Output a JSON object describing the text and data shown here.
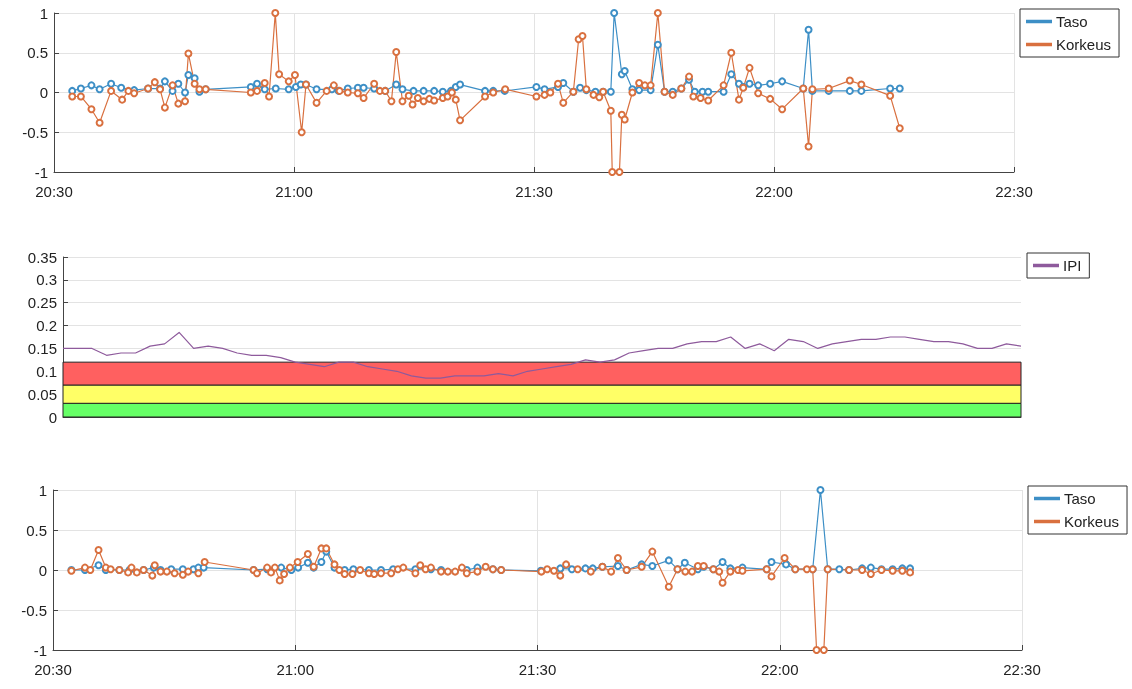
{
  "chart_data": [
    {
      "type": "line",
      "xlim": [
        20.5,
        22.5
      ],
      "xticks": [
        {
          "value": 20.5,
          "label": "20:30"
        },
        {
          "value": 21,
          "label": "21:00"
        },
        {
          "value": 21.5,
          "label": "21:30"
        },
        {
          "value": 22,
          "label": "22:00"
        },
        {
          "value": 22.5,
          "label": "22:30"
        }
      ],
      "ylim": [
        -1,
        1
      ],
      "yticks": [
        -1,
        -0.5,
        0,
        0.5,
        1
      ],
      "grid": true,
      "legend": "top right",
      "marker": "circle",
      "series": [
        {
          "name": "Taso",
          "color": "#3d8fc6",
          "x": [
            20.538,
            20.556,
            20.578,
            20.595,
            20.619,
            20.64,
            20.667,
            20.696,
            20.721,
            20.731,
            20.747,
            20.759,
            20.773,
            20.78,
            20.793,
            20.803,
            20.816,
            20.91,
            20.923,
            20.939,
            20.962,
            20.989,
            21.004,
            21.014,
            21.025,
            21.047,
            21.079,
            21.093,
            21.112,
            21.133,
            21.145,
            21.167,
            21.19,
            21.213,
            21.226,
            21.249,
            21.27,
            21.292,
            21.31,
            21.327,
            21.337,
            21.346,
            21.398,
            21.415,
            21.439,
            21.505,
            21.522,
            21.55,
            21.561,
            21.582,
            21.596,
            21.609,
            21.628,
            21.644,
            21.66,
            21.667,
            21.683,
            21.689,
            21.705,
            21.719,
            21.743,
            21.758,
            21.772,
            21.789,
            21.807,
            21.823,
            21.835,
            21.851,
            21.863,
            21.895,
            21.911,
            21.927,
            21.936,
            21.949,
            21.967,
            21.992,
            22.017,
            22.061,
            22.072,
            22.08,
            22.114,
            22.158,
            22.182,
            22.242,
            22.262
          ],
          "values": [
            0.02,
            0.05,
            0.09,
            0.04,
            0.11,
            0.06,
            0.03,
            0.05,
            0.05,
            0.14,
            0.02,
            0.11,
            0,
            0.22,
            0.18,
            0.01,
            0.04,
            0.07,
            0.11,
            0.04,
            0.05,
            0.04,
            0.07,
            0.1,
            0.1,
            0.04,
            0.04,
            0.02,
            0.05,
            0.06,
            0.06,
            0.05,
            0.02,
            0.1,
            0.04,
            0.02,
            0.02,
            0.02,
            0.01,
            0.02,
            0.07,
            0.1,
            0.02,
            0.02,
            0.02,
            0.07,
            0.04,
            0.07,
            0.12,
            0.01,
            0.06,
            0.03,
            0.01,
            0.01,
            0.01,
            1,
            0.23,
            0.27,
            0.04,
            0.03,
            0.03,
            0.6,
            0.01,
            0.01,
            0.05,
            0.16,
            0.01,
            0.01,
            0.01,
            0.01,
            0.23,
            0.11,
            0.07,
            0.11,
            0.09,
            0.11,
            0.14,
            0.05,
            0.79,
            0.02,
            0.02,
            0.02,
            0.02,
            0.05,
            0.05
          ]
        },
        {
          "name": "Korkeus",
          "color": "#d9703f",
          "x": [
            20.538,
            20.556,
            20.578,
            20.595,
            20.619,
            20.642,
            20.655,
            20.667,
            20.696,
            20.71,
            20.721,
            20.731,
            20.747,
            20.759,
            20.773,
            20.78,
            20.793,
            20.803,
            20.816,
            20.91,
            20.923,
            20.939,
            20.948,
            20.961,
            20.969,
            20.989,
            21.002,
            21.016,
            21.025,
            21.047,
            21.068,
            21.083,
            21.095,
            21.112,
            21.133,
            21.145,
            21.167,
            21.179,
            21.19,
            21.203,
            21.213,
            21.226,
            21.239,
            21.247,
            21.258,
            21.27,
            21.282,
            21.292,
            21.31,
            21.32,
            21.329,
            21.337,
            21.346,
            21.398,
            21.415,
            21.44,
            21.505,
            21.522,
            21.534,
            21.55,
            21.561,
            21.582,
            21.593,
            21.601,
            21.609,
            21.624,
            21.636,
            21.644,
            21.66,
            21.663,
            21.678,
            21.683,
            21.689,
            21.705,
            21.719,
            21.731,
            21.743,
            21.758,
            21.772,
            21.789,
            21.807,
            21.823,
            21.832,
            21.847,
            21.863,
            21.895,
            21.911,
            21.927,
            21.936,
            21.949,
            21.967,
            21.992,
            22.017,
            22.061,
            22.072,
            22.08,
            22.114,
            22.158,
            22.182,
            22.242,
            22.262
          ],
          "values": [
            -0.05,
            -0.05,
            -0.21,
            -0.38,
            0.02,
            -0.09,
            0.02,
            -0.01,
            0.05,
            0.13,
            0.04,
            -0.19,
            0.09,
            -0.14,
            -0.11,
            0.49,
            0.11,
            0.04,
            0.04,
            0,
            0.02,
            0.12,
            -0.05,
            1,
            0.23,
            0.14,
            0.22,
            -0.5,
            0.1,
            -0.13,
            0.02,
            0.09,
            0.02,
            0,
            -0.01,
            -0.07,
            0.11,
            0.02,
            0.02,
            -0.11,
            0.51,
            -0.11,
            -0.04,
            -0.15,
            -0.07,
            -0.11,
            -0.08,
            -0.1,
            -0.07,
            -0.05,
            0,
            -0.09,
            -0.35,
            -0.05,
            0,
            0.04,
            -0.05,
            -0.03,
            0,
            0.11,
            -0.13,
            0.01,
            0.67,
            0.71,
            0.04,
            -0.03,
            -0.06,
            0.01,
            -0.23,
            -1,
            -1,
            -0.28,
            -0.34,
            0,
            0.12,
            0.09,
            0.09,
            1,
            0.01,
            -0.03,
            0.05,
            0.2,
            -0.05,
            -0.07,
            -0.1,
            0.09,
            0.5,
            -0.09,
            0.06,
            0.31,
            -0.01,
            -0.08,
            -0.21,
            0.05,
            -0.68,
            0.04,
            0.05,
            0.15,
            0.1,
            -0.04,
            -0.45
          ]
        }
      ]
    },
    {
      "type": "line",
      "categories": [
        null,
        null,
        null,
        null,
        null,
        null,
        null,
        null,
        null,
        null,
        null,
        null,
        null,
        null,
        null,
        null,
        null,
        null,
        null,
        null,
        null,
        null,
        null,
        null,
        null,
        null,
        null,
        null,
        null,
        null,
        null,
        null,
        null,
        null,
        null,
        null,
        null,
        null,
        null,
        null,
        null,
        null,
        null,
        null,
        null,
        null,
        null,
        null,
        null,
        null,
        null,
        null,
        null,
        null,
        null,
        null,
        null,
        null,
        null,
        null,
        null,
        null,
        null,
        null,
        null,
        null,
        null
      ],
      "ylim": [
        0,
        0.35
      ],
      "yticks": [
        0,
        0.05,
        0.1,
        0.15,
        0.2,
        0.25,
        0.3,
        0.35
      ],
      "grid": "y",
      "legend": "top right",
      "marker": "none",
      "tick_labels": "y",
      "series": [
        {
          "name": "IPI",
          "color": "#8e5a9c",
          "values": [
            0.15,
            0.15,
            0.15,
            0.135,
            0.14,
            0.14,
            0.155,
            0.16,
            0.185,
            0.15,
            0.155,
            0.15,
            0.14,
            0.135,
            0.135,
            0.13,
            0.12,
            0.115,
            0.11,
            0.12,
            0.12,
            0.11,
            0.105,
            0.1,
            0.09,
            0.085,
            0.085,
            0.09,
            0.09,
            0.09,
            0.095,
            0.09,
            0.1,
            0.105,
            0.11,
            0.115,
            0.125,
            0.12,
            0.125,
            0.14,
            0.145,
            0.15,
            0.15,
            0.16,
            0.165,
            0.165,
            0.175,
            0.15,
            0.16,
            0.145,
            0.17,
            0.165,
            0.15,
            0.16,
            0.165,
            0.17,
            0.17,
            0.175,
            0.175,
            0.17,
            0.165,
            0.165,
            0.16,
            0.15,
            0.15,
            0.16,
            0.155
          ]
        }
      ],
      "bands": [
        {
          "axis": "y",
          "from": 0,
          "to": 0.03,
          "color": "#66ff66"
        },
        {
          "axis": "y",
          "from": 0.03,
          "to": 0.07,
          "color": "#ffff66"
        },
        {
          "axis": "y",
          "from": 0.07,
          "to": 0.12,
          "color": "#ff6060"
        }
      ]
    },
    {
      "type": "line",
      "xlim": [
        20.5,
        22.5
      ],
      "xticks": [
        {
          "value": 20.5,
          "label": "20:30"
        },
        {
          "value": 21,
          "label": "21:00"
        },
        {
          "value": 21.5,
          "label": "21:30"
        },
        {
          "value": 22,
          "label": "22:00"
        },
        {
          "value": 22.5,
          "label": "22:30"
        }
      ],
      "ylim": [
        -1,
        1
      ],
      "yticks": [
        -1,
        -0.5,
        0,
        0.5,
        1
      ],
      "grid": true,
      "legend": "top right",
      "marker": "circle",
      "series": [
        {
          "name": "Taso",
          "color": "#3d8fc6",
          "x": [
            20.538,
            20.566,
            20.594,
            20.609,
            20.637,
            20.658,
            20.687,
            20.708,
            20.722,
            20.744,
            20.768,
            20.79,
            20.8,
            20.811,
            20.914,
            20.942,
            20.971,
            20.992,
            21.006,
            21.026,
            21.038,
            21.054,
            21.064,
            21.081,
            21.102,
            21.12,
            21.152,
            21.177,
            21.202,
            21.248,
            21.28,
            21.301,
            21.354,
            21.376,
            21.408,
            21.425,
            21.507,
            21.547,
            21.571,
            21.599,
            21.614,
            21.634,
            21.666,
            21.684,
            21.715,
            21.737,
            21.771,
            21.789,
            21.804,
            21.831,
            21.843,
            21.863,
            21.882,
            21.898,
            21.923,
            21.973,
            21.983,
            22.013,
            22.032,
            22.068,
            22.084,
            22.099,
            22.123,
            22.143,
            22.17,
            22.188,
            22.21,
            22.233,
            22.253,
            22.269
          ],
          "values": [
            0,
            0,
            0.06,
            0,
            0,
            0,
            0,
            0.03,
            0,
            0.01,
            0.01,
            0.01,
            0.03,
            0.03,
            0,
            0.01,
            0.03,
            0,
            0.03,
            0.09,
            0.03,
            0.1,
            0.23,
            0.03,
            0,
            0.01,
            0,
            0,
            0.01,
            0.01,
            0.01,
            0,
            0,
            0.03,
            0.01,
            0,
            -0.01,
            0.02,
            0.01,
            0.02,
            0.02,
            0.04,
            0.05,
            0,
            0.07,
            0.05,
            0.12,
            0.01,
            0.09,
            0.01,
            0.04,
            0.01,
            0.1,
            0.02,
            0.03,
            0.01,
            0.1,
            0.07,
            0.01,
            0.01,
            1,
            0.01,
            0.01,
            0,
            0.02,
            0.03,
            0.01,
            0.01,
            0.02,
            0.02
          ]
        },
        {
          "name": "Korkeus",
          "color": "#d9703f",
          "x": [
            20.538,
            20.566,
            20.577,
            20.594,
            20.609,
            20.619,
            20.637,
            20.655,
            20.662,
            20.673,
            20.687,
            20.705,
            20.71,
            20.722,
            20.735,
            20.751,
            20.768,
            20.779,
            20.8,
            20.813,
            20.914,
            20.921,
            20.942,
            20.95,
            20.958,
            20.968,
            20.977,
            20.989,
            21.005,
            21.026,
            21.038,
            21.054,
            21.064,
            21.081,
            21.091,
            21.102,
            21.118,
            21.134,
            21.152,
            21.163,
            21.177,
            21.198,
            21.212,
            21.223,
            21.248,
            21.258,
            21.269,
            21.28,
            21.301,
            21.315,
            21.33,
            21.344,
            21.354,
            21.376,
            21.393,
            21.408,
            21.425,
            21.508,
            21.52,
            21.534,
            21.547,
            21.559,
            21.583,
            21.61,
            21.634,
            21.652,
            21.666,
            21.684,
            21.715,
            21.737,
            21.771,
            21.789,
            21.805,
            21.819,
            21.831,
            21.843,
            21.863,
            21.875,
            21.882,
            21.898,
            21.914,
            21.923,
            21.973,
            21.983,
            22.01,
            22.032,
            22.056,
            22.068,
            22.076,
            22.091,
            22.099,
            22.143,
            22.17,
            22.188,
            22.21,
            22.233,
            22.253,
            22.269
          ],
          "values": [
            -0.01,
            0.03,
            0,
            0.25,
            0.03,
            0.01,
            0,
            -0.03,
            0.03,
            -0.03,
            0,
            -0.07,
            0.06,
            -0.02,
            -0.02,
            -0.04,
            -0.06,
            -0.02,
            -0.04,
            0.1,
            0,
            -0.04,
            0.03,
            -0.03,
            0.03,
            -0.13,
            -0.05,
            0.03,
            0.1,
            0.2,
            0.04,
            0.27,
            0.27,
            0.07,
            0,
            -0.05,
            -0.05,
            0,
            -0.04,
            -0.05,
            -0.04,
            -0.04,
            0.01,
            0.03,
            -0.04,
            0.06,
            0.01,
            0.03,
            -0.02,
            -0.02,
            -0.02,
            0.03,
            -0.04,
            -0.02,
            0.04,
            0.01,
            0,
            -0.02,
            0.01,
            -0.01,
            -0.07,
            0.07,
            0.01,
            -0.02,
            0.04,
            -0.02,
            0.15,
            0,
            0.04,
            0.23,
            -0.21,
            0.01,
            -0.02,
            -0.02,
            0.05,
            0.05,
            0.01,
            -0.02,
            -0.16,
            -0.02,
            0,
            -0.01,
            0.01,
            -0.08,
            0.15,
            0.01,
            0.01,
            0.01,
            -1,
            -1,
            0.01,
            0,
            0,
            -0.05,
            0,
            -0.01,
            -0.01,
            -0.03
          ]
        }
      ]
    }
  ]
}
